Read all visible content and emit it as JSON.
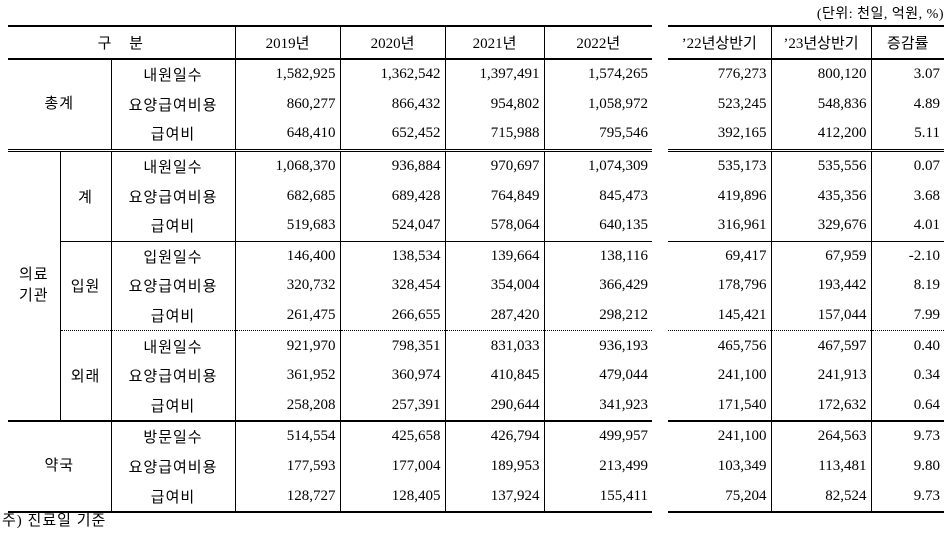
{
  "unit_label": "(단위: 천일, 억원, %)",
  "header": {
    "category": "구 분",
    "years": [
      "2019년",
      "2020년",
      "2021년",
      "2022년"
    ],
    "halves": [
      "’22년상반기",
      "’23년상반기"
    ],
    "change": "증감률"
  },
  "sections": [
    {
      "label": "총계",
      "label_display": "총계",
      "merged": true,
      "groups": [
        {
          "label": "",
          "rows": [
            {
              "item": "내원일수",
              "values": [
                "1,582,925",
                "1,362,542",
                "1,397,491",
                "1,574,265",
                "776,273",
                "800,120",
                "3.07"
              ]
            },
            {
              "item": "요양급여비용",
              "values": [
                "860,277",
                "866,432",
                "954,802",
                "1,058,972",
                "523,245",
                "548,836",
                "4.89"
              ]
            },
            {
              "item": "급여비",
              "values": [
                "648,410",
                "652,452",
                "715,988",
                "795,546",
                "392,165",
                "412,200",
                "5.11"
              ]
            }
          ]
        }
      ]
    },
    {
      "label": "의료기관",
      "label_display": "의료\n기관",
      "merged": false,
      "sep": "double",
      "groups": [
        {
          "label": "계",
          "rows": [
            {
              "item": "내원일수",
              "values": [
                "1,068,370",
                "936,884",
                "970,697",
                "1,074,309",
                "535,173",
                "535,556",
                "0.07"
              ]
            },
            {
              "item": "요양급여비용",
              "values": [
                "682,685",
                "689,428",
                "764,849",
                "845,473",
                "419,896",
                "435,356",
                "3.68"
              ]
            },
            {
              "item": "급여비",
              "values": [
                "519,683",
                "524,047",
                "578,064",
                "640,135",
                "316,961",
                "329,676",
                "4.01"
              ]
            }
          ]
        },
        {
          "label": "입원",
          "sep": "solid1",
          "rows": [
            {
              "item": "입원일수",
              "values": [
                "146,400",
                "138,534",
                "139,664",
                "138,116",
                "69,417",
                "67,959",
                "-2.10"
              ]
            },
            {
              "item": "요양급여비용",
              "values": [
                "320,732",
                "328,454",
                "354,004",
                "366,429",
                "178,796",
                "193,442",
                "8.19"
              ]
            },
            {
              "item": "급여비",
              "values": [
                "261,475",
                "266,655",
                "287,420",
                "298,212",
                "145,421",
                "157,044",
                "7.99"
              ]
            }
          ]
        },
        {
          "label": "외래",
          "sep": "dotted",
          "rows": [
            {
              "item": "내원일수",
              "values": [
                "921,970",
                "798,351",
                "831,033",
                "936,193",
                "465,756",
                "467,597",
                "0.40"
              ]
            },
            {
              "item": "요양급여비용",
              "values": [
                "361,952",
                "360,974",
                "410,845",
                "479,044",
                "241,100",
                "241,913",
                "0.34"
              ]
            },
            {
              "item": "급여비",
              "values": [
                "258,208",
                "257,391",
                "290,644",
                "341,923",
                "171,540",
                "172,632",
                "0.64"
              ]
            }
          ]
        }
      ]
    },
    {
      "label": "약국",
      "label_display": "약국",
      "merged": true,
      "sep": "solid2",
      "groups": [
        {
          "label": "",
          "rows": [
            {
              "item": "방문일수",
              "values": [
                "514,554",
                "425,658",
                "426,794",
                "499,957",
                "241,100",
                "264,563",
                "9.73"
              ]
            },
            {
              "item": "요양급여비용",
              "values": [
                "177,593",
                "177,004",
                "189,953",
                "213,499",
                "103,349",
                "113,481",
                "9.80"
              ]
            },
            {
              "item": "급여비",
              "values": [
                "128,727",
                "128,405",
                "137,924",
                "155,411",
                "75,204",
                "82,524",
                "9.73"
              ]
            }
          ]
        }
      ]
    }
  ],
  "footnote": "주) 진료일 기준"
}
